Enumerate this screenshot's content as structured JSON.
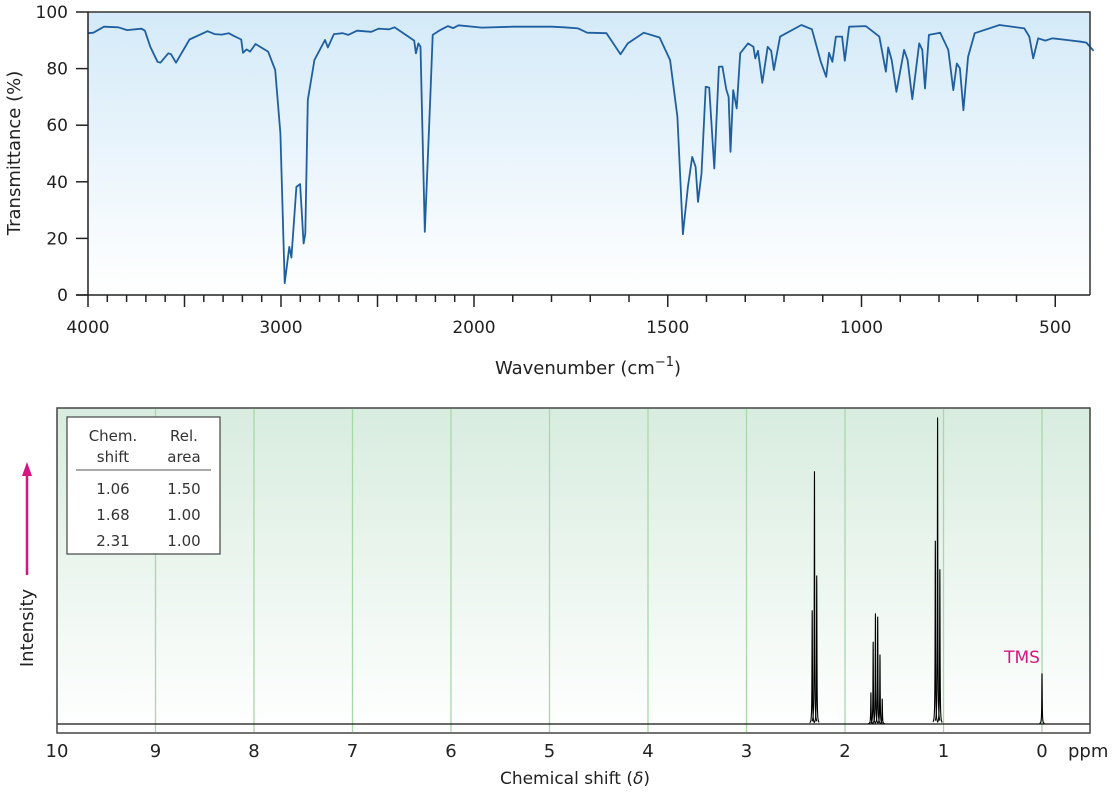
{
  "chart_data": [
    {
      "type": "line",
      "ylabel": "Transmittance (%)",
      "xlabel_main": "Wavenumber (cm",
      "xlabel_sup": "−1",
      "xlabel_close": ")",
      "xlim": [
        4000,
        400
      ],
      "ylim": [
        0,
        100
      ],
      "x_scale_note": "scale doubles below 2000",
      "x_tick_labels": [
        "4000",
        "3000",
        "2000",
        "1500",
        "1000",
        "500"
      ],
      "y_tick_labels": [
        "0",
        "20",
        "40",
        "60",
        "80",
        "100"
      ],
      "line_color": "#1f5fa0",
      "background_gradient": [
        "#d4eaf8",
        "#ffffff"
      ],
      "points": [
        [
          4000,
          92.5
        ],
        [
          3972,
          92.7
        ],
        [
          3917,
          94.8
        ],
        [
          3843,
          94.6
        ],
        [
          3797,
          93.6
        ],
        [
          3723,
          94.1
        ],
        [
          3705,
          93.4
        ],
        [
          3677,
          87.7
        ],
        [
          3640,
          82.4
        ],
        [
          3625,
          82.1
        ],
        [
          3584,
          85.4
        ],
        [
          3570,
          85.1
        ],
        [
          3544,
          82.1
        ],
        [
          3474,
          90.3
        ],
        [
          3381,
          93.2
        ],
        [
          3344,
          92.2
        ],
        [
          3307,
          92.0
        ],
        [
          3271,
          92.5
        ],
        [
          3243,
          91.5
        ],
        [
          3206,
          90.3
        ],
        [
          3197,
          85.6
        ],
        [
          3178,
          86.8
        ],
        [
          3160,
          86.0
        ],
        [
          3132,
          88.7
        ],
        [
          3067,
          86.0
        ],
        [
          3030,
          79.5
        ],
        [
          3003,
          57.1
        ],
        [
          2981,
          4.2
        ],
        [
          2966,
          12.3
        ],
        [
          2957,
          17.0
        ],
        [
          2946,
          13.2
        ],
        [
          2920,
          38.2
        ],
        [
          2901,
          39.2
        ],
        [
          2883,
          18.2
        ],
        [
          2874,
          21.7
        ],
        [
          2861,
          68.9
        ],
        [
          2827,
          83.0
        ],
        [
          2772,
          90.1
        ],
        [
          2757,
          87.5
        ],
        [
          2726,
          92.2
        ],
        [
          2680,
          92.5
        ],
        [
          2652,
          91.9
        ],
        [
          2606,
          93.4
        ],
        [
          2532,
          93.0
        ],
        [
          2495,
          94.1
        ],
        [
          2440,
          93.9
        ],
        [
          2412,
          94.6
        ],
        [
          2366,
          92.5
        ],
        [
          2310,
          89.9
        ],
        [
          2301,
          85.4
        ],
        [
          2288,
          88.9
        ],
        [
          2277,
          87.7
        ],
        [
          2255,
          22.3
        ],
        [
          2227,
          68.9
        ],
        [
          2214,
          91.9
        ],
        [
          2181,
          93.4
        ],
        [
          2135,
          95.0
        ],
        [
          2108,
          94.3
        ],
        [
          2080,
          95.3
        ],
        [
          1980,
          94.5
        ],
        [
          1900,
          94.8
        ],
        [
          1800,
          94.8
        ],
        [
          1768,
          94.6
        ],
        [
          1731,
          94.2
        ],
        [
          1708,
          92.7
        ],
        [
          1658,
          92.5
        ],
        [
          1622,
          85.1
        ],
        [
          1603,
          88.9
        ],
        [
          1562,
          92.7
        ],
        [
          1521,
          91.0
        ],
        [
          1494,
          83.0
        ],
        [
          1475,
          63.0
        ],
        [
          1461,
          21.5
        ],
        [
          1448,
          38.2
        ],
        [
          1437,
          48.8
        ],
        [
          1428,
          45.3
        ],
        [
          1422,
          32.9
        ],
        [
          1413,
          42.9
        ],
        [
          1402,
          73.6
        ],
        [
          1393,
          73.3
        ],
        [
          1380,
          44.7
        ],
        [
          1368,
          80.7
        ],
        [
          1359,
          80.7
        ],
        [
          1349,
          72.6
        ],
        [
          1343,
          70.0
        ],
        [
          1338,
          50.6
        ],
        [
          1331,
          72.4
        ],
        [
          1322,
          65.9
        ],
        [
          1313,
          85.4
        ],
        [
          1293,
          88.9
        ],
        [
          1279,
          87.7
        ],
        [
          1274,
          83.6
        ],
        [
          1267,
          86.3
        ],
        [
          1256,
          75.0
        ],
        [
          1242,
          87.7
        ],
        [
          1233,
          86.3
        ],
        [
          1226,
          79.5
        ],
        [
          1210,
          91.3
        ],
        [
          1155,
          95.4
        ],
        [
          1128,
          93.9
        ],
        [
          1105,
          82.4
        ],
        [
          1091,
          77.1
        ],
        [
          1084,
          85.6
        ],
        [
          1075,
          82.4
        ],
        [
          1066,
          91.3
        ],
        [
          1050,
          91.3
        ],
        [
          1043,
          82.8
        ],
        [
          1032,
          94.8
        ],
        [
          989,
          95.0
        ],
        [
          954,
          91.3
        ],
        [
          937,
          78.9
        ],
        [
          931,
          87.5
        ],
        [
          922,
          83.0
        ],
        [
          910,
          71.8
        ],
        [
          890,
          86.6
        ],
        [
          881,
          83.0
        ],
        [
          869,
          69.2
        ],
        [
          851,
          88.9
        ],
        [
          843,
          86.6
        ],
        [
          836,
          73.0
        ],
        [
          826,
          91.9
        ],
        [
          797,
          92.7
        ],
        [
          776,
          86.6
        ],
        [
          763,
          72.4
        ],
        [
          754,
          81.8
        ],
        [
          746,
          80.1
        ],
        [
          737,
          65.3
        ],
        [
          725,
          84.2
        ],
        [
          708,
          92.5
        ],
        [
          644,
          95.4
        ],
        [
          580,
          94.2
        ],
        [
          567,
          91.3
        ],
        [
          557,
          83.6
        ],
        [
          544,
          90.7
        ],
        [
          526,
          89.9
        ],
        [
          507,
          90.7
        ],
        [
          470,
          90.1
        ],
        [
          434,
          89.5
        ],
        [
          420,
          89.2
        ],
        [
          401,
          86.3
        ]
      ]
    },
    {
      "type": "line",
      "ylabel": "Intensity",
      "xlabel_main": "Chemical shift (",
      "xlabel_italic": "δ",
      "xlabel_close": ")",
      "x_unit": "ppm",
      "xlim": [
        10,
        -0.5
      ],
      "x_tick_labels": [
        "10",
        "9",
        "8",
        "7",
        "6",
        "5",
        "4",
        "3",
        "2",
        "1",
        "0"
      ],
      "grid": "vertical lines at each ppm",
      "line_color": "#000000",
      "grid_color": "#a8d8a8",
      "accent_color": "#d6157f",
      "background_gradient": [
        "#d8ecdf",
        "#ffffff"
      ],
      "annotation": "TMS",
      "peaks_relative_intensity": [
        {
          "shift": 2.31,
          "lines": [
            [
              2.333,
              0.36
            ],
            [
              2.31,
              0.8
            ],
            [
              2.287,
              0.47
            ]
          ]
        },
        {
          "shift": 1.68,
          "lines": [
            [
              1.737,
              0.1
            ],
            [
              1.714,
              0.26
            ],
            [
              1.691,
              0.35
            ],
            [
              1.668,
              0.34
            ],
            [
              1.645,
              0.22
            ],
            [
              1.622,
              0.08
            ]
          ]
        },
        {
          "shift": 1.06,
          "lines": [
            [
              1.083,
              0.58
            ],
            [
              1.06,
              0.97
            ],
            [
              1.037,
              0.49
            ]
          ]
        },
        {
          "shift": 0.0,
          "lines": [
            [
              0.0,
              0.16
            ]
          ]
        }
      ],
      "table": {
        "headers": [
          [
            "Chem.",
            "shift"
          ],
          [
            "Rel.",
            "area"
          ]
        ],
        "rows": [
          [
            "1.06",
            "1.50"
          ],
          [
            "1.68",
            "1.00"
          ],
          [
            "2.31",
            "1.00"
          ]
        ]
      }
    }
  ]
}
